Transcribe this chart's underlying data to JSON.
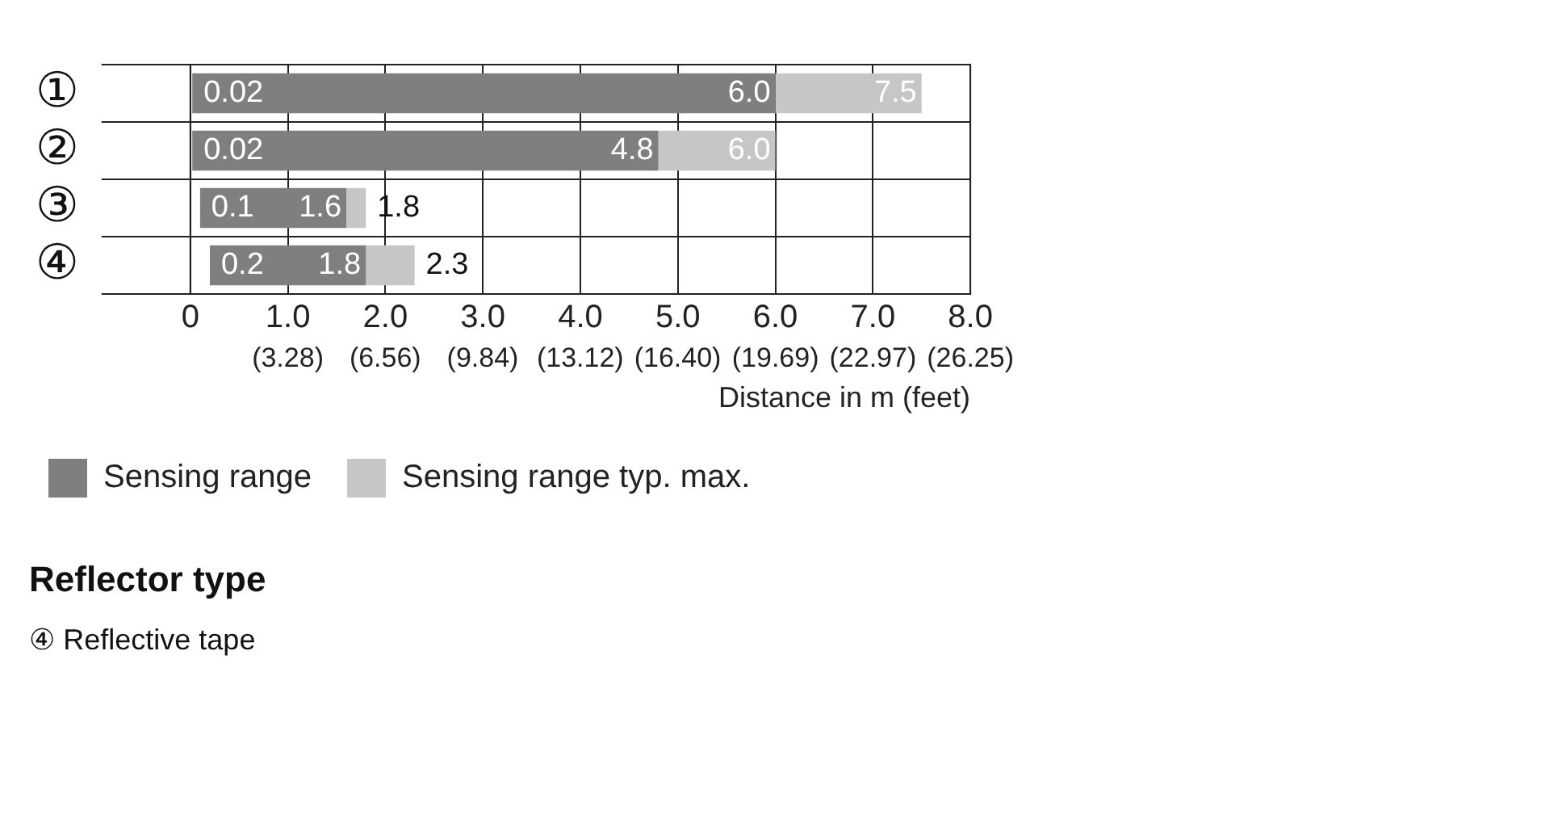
{
  "chart_data": {
    "type": "bar",
    "orientation": "horizontal",
    "stacked": true,
    "categories": [
      "①",
      "②",
      "③",
      "④"
    ],
    "series": [
      {
        "name": "Sensing range",
        "color": "#7f7f7f",
        "base": [
          0.02,
          0.02,
          0.1,
          0.2
        ],
        "values": [
          5.98,
          4.78,
          1.5,
          1.6
        ]
      },
      {
        "name": "Sensing range typ. max.",
        "color": "#c6c6c6",
        "values": [
          1.5,
          1.2,
          0.2,
          0.5
        ]
      }
    ],
    "xlim": [
      0,
      8
    ],
    "xticks": [
      0,
      {
        "value": 1,
        "label": "1.0"
      },
      {
        "value": 2,
        "label": "2.0"
      },
      {
        "value": 3,
        "label": "3.0"
      },
      {
        "value": 4,
        "label": "4.0"
      },
      {
        "value": 5,
        "label": "5.0"
      },
      {
        "value": 6,
        "label": "6.0"
      },
      {
        "value": 7,
        "label": "7.0"
      },
      {
        "value": 8,
        "label": "8.0"
      }
    ],
    "x2lim": [
      0,
      26.25
    ],
    "x2ticks": [
      {
        "value": 3.28,
        "label": "(3.28)"
      },
      {
        "value": 6.56,
        "label": "(6.56)"
      },
      {
        "value": 9.84,
        "label": "(9.84)"
      },
      {
        "value": 13.12,
        "label": "(13.12)"
      },
      {
        "value": 16.4,
        "label": "(16.40)"
      },
      {
        "value": 19.69,
        "label": "(19.69)"
      },
      {
        "value": 22.97,
        "label": "(22.97)"
      },
      {
        "value": 26.25,
        "label": "(26.25)"
      }
    ],
    "xlabel": "Distance in m (feet)",
    "grid": true,
    "legend": "bottom",
    "annotations": [
      {
        "text": "0.02",
        "x": 0.02,
        "y": "①"
      },
      {
        "text": "6.0",
        "x": 6.0,
        "y": "①"
      },
      {
        "text": "7.5",
        "x": 7.5,
        "y": "①"
      },
      {
        "text": "0.02",
        "x": 0.02,
        "y": "②"
      },
      {
        "text": "4.8",
        "x": 4.8,
        "y": "②"
      },
      {
        "text": "6.0",
        "x": 6.0,
        "y": "②"
      },
      {
        "text": "0.1",
        "x": 0.1,
        "y": "③"
      },
      {
        "text": "1.6",
        "x": 1.6,
        "y": "③"
      },
      {
        "text": "1.8",
        "x": 1.8,
        "y": "③"
      },
      {
        "text": "0.2",
        "x": 0.2,
        "y": "④"
      },
      {
        "text": "1.8",
        "x": 1.8,
        "y": "④"
      },
      {
        "text": "2.3",
        "x": 2.3,
        "y": "④"
      },
      "Reflector type",
      "④ Reflective tape"
    ]
  }
}
